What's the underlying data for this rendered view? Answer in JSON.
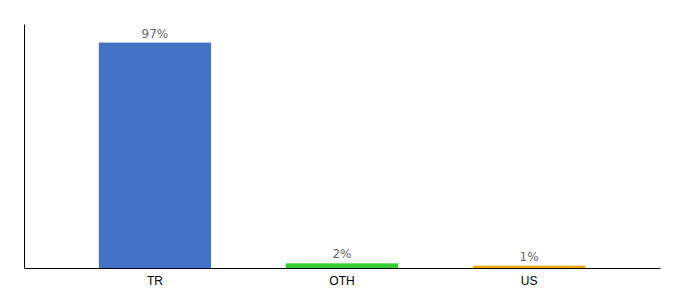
{
  "chart_data": {
    "type": "bar",
    "categories": [
      "TR",
      "OTH",
      "US"
    ],
    "values": [
      97,
      2,
      1
    ],
    "value_labels": [
      "97%",
      "2%",
      "1%"
    ],
    "colors": [
      "#4472c4",
      "#33cc33",
      "#f0a500"
    ],
    "ylim": [
      0,
      105
    ],
    "data_labels": true,
    "tick_labels": "x"
  }
}
